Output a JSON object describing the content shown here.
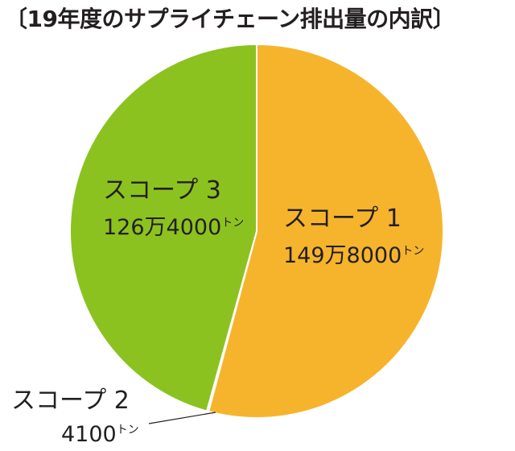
{
  "chart_data": {
    "type": "pie",
    "title": "〔19年度のサプライチェーン排出量の内訳〕",
    "unit": "トン",
    "slices": [
      {
        "name": "スコープ 1",
        "value": 1498000,
        "value_text": "149万8000",
        "color": "#f6b42d"
      },
      {
        "name": "スコープ 2",
        "value": 4100,
        "value_text": "4100",
        "color": "#1ea3e0"
      },
      {
        "name": "スコープ 3",
        "value": 1264000,
        "value_text": "126万4000",
        "color": "#8cc21f"
      }
    ]
  }
}
